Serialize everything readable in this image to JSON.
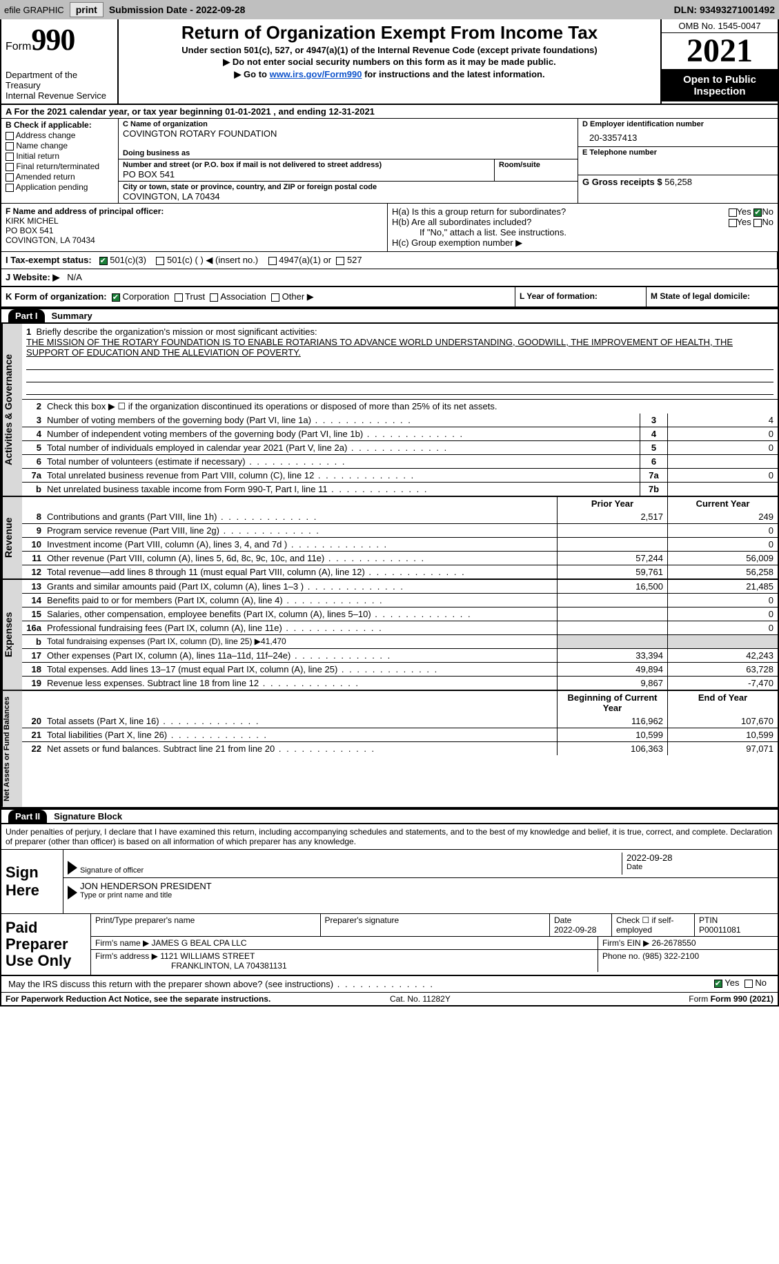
{
  "toolbar": {
    "efile": "efile GRAPHIC",
    "print": "print",
    "submission": "Submission Date - 2022-09-28",
    "dln": "DLN: 93493271001492"
  },
  "header": {
    "form_word": "Form",
    "form_num": "990",
    "dept": "Department of the Treasury\nInternal Revenue Service",
    "title": "Return of Organization Exempt From Income Tax",
    "subtitle": "Under section 501(c), 527, or 4947(a)(1) of the Internal Revenue Code (except private foundations)",
    "note1": "▶ Do not enter social security numbers on this form as it may be made public.",
    "note2_pre": "▶ Go to ",
    "note2_link": "www.irs.gov/Form990",
    "note2_post": " for instructions and the latest information.",
    "omb": "OMB No. 1545-0047",
    "year": "2021",
    "open": "Open to Public Inspection"
  },
  "rowA": "A For the 2021 calendar year, or tax year beginning 01-01-2021     , and ending 12-31-2021",
  "B": {
    "label": "B Check if applicable:",
    "opts": [
      "Address change",
      "Name change",
      "Initial return",
      "Final return/terminated",
      "Amended return",
      "Application pending"
    ]
  },
  "C": {
    "name_label": "C Name of organization",
    "name": "COVINGTON ROTARY FOUNDATION",
    "dba_label": "Doing business as",
    "street_label": "Number and street (or P.O. box if mail is not delivered to street address)",
    "street": "PO BOX 541",
    "room_label": "Room/suite",
    "city_label": "City or town, state or province, country, and ZIP or foreign postal code",
    "city": "COVINGTON, LA  70434"
  },
  "D": {
    "label": "D Employer identification number",
    "val": "20-3357413"
  },
  "E": {
    "label": "E Telephone number"
  },
  "G": {
    "label": "G Gross receipts $",
    "val": "56,258"
  },
  "F": {
    "label": "F  Name and address of principal officer:",
    "name": "KIRK MICHEL",
    "addr1": "PO BOX 541",
    "addr2": "COVINGTON, LA  70434"
  },
  "H": {
    "a": "H(a)  Is this a group return for subordinates?",
    "b": "H(b)  Are all subordinates included?",
    "b_note": "If \"No,\" attach a list. See instructions.",
    "c": "H(c)  Group exemption number ▶",
    "yes": "Yes",
    "no": "No"
  },
  "I": {
    "label": "I    Tax-exempt status:",
    "opts": [
      "501(c)(3)",
      "501(c) (  ) ◀ (insert no.)",
      "4947(a)(1) or",
      "527"
    ]
  },
  "J": {
    "label": "J   Website: ▶",
    "val": "N/A"
  },
  "K": {
    "label": "K Form of organization:",
    "opts": [
      "Corporation",
      "Trust",
      "Association",
      "Other ▶"
    ]
  },
  "L": "L Year of formation:",
  "M": "M State of legal domicile:",
  "partI": {
    "hdr": "Part I",
    "title": "Summary"
  },
  "tabs": {
    "gov": "Activities & Governance",
    "rev": "Revenue",
    "exp": "Expenses",
    "net": "Net Assets or Fund Balances"
  },
  "mission": {
    "label": "Briefly describe the organization's mission or most significant activities:",
    "text": "THE MISSION OF THE ROTARY FOUNDATION IS TO ENABLE ROTARIANS TO ADVANCE WORLD UNDERSTANDING, GOODWILL, THE IMPROVEMENT OF HEALTH, THE SUPPORT OF EDUCATION AND THE ALLEVIATION OF POVERTY."
  },
  "line2": "Check this box ▶ ☐  if the organization discontinued its operations or disposed of more than 25% of its net assets.",
  "cols": {
    "prior": "Prior Year",
    "current": "Current Year",
    "boy": "Beginning of Current Year",
    "eoy": "End of Year"
  },
  "lines_gov": [
    {
      "n": "3",
      "d": "Number of voting members of the governing body (Part VI, line 1a)",
      "box": "3",
      "v": "4"
    },
    {
      "n": "4",
      "d": "Number of independent voting members of the governing body (Part VI, line 1b)",
      "box": "4",
      "v": "0"
    },
    {
      "n": "5",
      "d": "Total number of individuals employed in calendar year 2021 (Part V, line 2a)",
      "box": "5",
      "v": "0"
    },
    {
      "n": "6",
      "d": "Total number of volunteers (estimate if necessary)",
      "box": "6",
      "v": ""
    },
    {
      "n": "7a",
      "d": "Total unrelated business revenue from Part VIII, column (C), line 12",
      "box": "7a",
      "v": "0"
    },
    {
      "n": "b",
      "d": "Net unrelated business taxable income from Form 990-T, Part I, line 11",
      "box": "7b",
      "v": ""
    }
  ],
  "lines_rev": [
    {
      "n": "8",
      "d": "Contributions and grants (Part VIII, line 1h)",
      "p": "2,517",
      "c": "249"
    },
    {
      "n": "9",
      "d": "Program service revenue (Part VIII, line 2g)",
      "p": "",
      "c": "0"
    },
    {
      "n": "10",
      "d": "Investment income (Part VIII, column (A), lines 3, 4, and 7d )",
      "p": "",
      "c": "0"
    },
    {
      "n": "11",
      "d": "Other revenue (Part VIII, column (A), lines 5, 6d, 8c, 9c, 10c, and 11e)",
      "p": "57,244",
      "c": "56,009"
    },
    {
      "n": "12",
      "d": "Total revenue—add lines 8 through 11 (must equal Part VIII, column (A), line 12)",
      "p": "59,761",
      "c": "56,258"
    }
  ],
  "lines_exp": [
    {
      "n": "13",
      "d": "Grants and similar amounts paid (Part IX, column (A), lines 1–3 )",
      "p": "16,500",
      "c": "21,485"
    },
    {
      "n": "14",
      "d": "Benefits paid to or for members (Part IX, column (A), line 4)",
      "p": "",
      "c": "0"
    },
    {
      "n": "15",
      "d": "Salaries, other compensation, employee benefits (Part IX, column (A), lines 5–10)",
      "p": "",
      "c": "0"
    },
    {
      "n": "16a",
      "d": "Professional fundraising fees (Part IX, column (A), line 11e)",
      "p": "",
      "c": "0"
    },
    {
      "n": "b",
      "d": "Total fundraising expenses (Part IX, column (D), line 25) ▶41,470",
      "shade": true
    },
    {
      "n": "17",
      "d": "Other expenses (Part IX, column (A), lines 11a–11d, 11f–24e)",
      "p": "33,394",
      "c": "42,243"
    },
    {
      "n": "18",
      "d": "Total expenses. Add lines 13–17 (must equal Part IX, column (A), line 25)",
      "p": "49,894",
      "c": "63,728"
    },
    {
      "n": "19",
      "d": "Revenue less expenses. Subtract line 18 from line 12",
      "p": "9,867",
      "c": "-7,470"
    }
  ],
  "lines_net": [
    {
      "n": "20",
      "d": "Total assets (Part X, line 16)",
      "p": "116,962",
      "c": "107,670"
    },
    {
      "n": "21",
      "d": "Total liabilities (Part X, line 26)",
      "p": "10,599",
      "c": "10,599"
    },
    {
      "n": "22",
      "d": "Net assets or fund balances. Subtract line 21 from line 20",
      "p": "106,363",
      "c": "97,071"
    }
  ],
  "partII": {
    "hdr": "Part II",
    "title": "Signature Block"
  },
  "sig": {
    "decl": "Under penalties of perjury, I declare that I have examined this return, including accompanying schedules and statements, and to the best of my knowledge and belief, it is true, correct, and complete. Declaration of preparer (other than officer) is based on all information of which preparer has any knowledge.",
    "sign_here": "Sign Here",
    "sig_officer": "Signature of officer",
    "date": "Date",
    "date_val": "2022-09-28",
    "officer": "JON HENDERSON  PRESIDENT",
    "type_name": "Type or print name and title"
  },
  "paid": {
    "label": "Paid Preparer Use Only",
    "print_name": "Print/Type preparer's name",
    "prep_sig": "Preparer's signature",
    "date_l": "Date",
    "date_v": "2022-09-28",
    "check_l": "Check ☐ if self-employed",
    "ptin_l": "PTIN",
    "ptin_v": "P00011081",
    "firm_name_l": "Firm's name     ▶",
    "firm_name": "JAMES G BEAL CPA LLC",
    "firm_ein_l": "Firm's EIN ▶",
    "firm_ein": "26-2678550",
    "firm_addr_l": "Firm's address ▶",
    "firm_addr1": "1121 WILLIAMS STREET",
    "firm_addr2": "FRANKLINTON, LA  704381131",
    "phone_l": "Phone no.",
    "phone": "(985) 322-2100"
  },
  "discuss": "May the IRS discuss this return with the preparer shown above? (see instructions)",
  "footer": {
    "notice": "For Paperwork Reduction Act Notice, see the separate instructions.",
    "cat": "Cat. No. 11282Y",
    "form": "Form 990 (2021)"
  }
}
